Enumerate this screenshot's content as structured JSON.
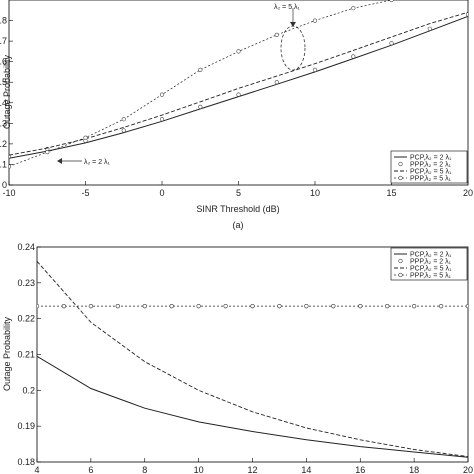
{
  "caption_a": "(a)",
  "chart_data": [
    {
      "type": "line",
      "panel": "a",
      "xlabel": "SINR Threshold (dB)",
      "ylabel": "Outage Probability",
      "xlim": [
        -10,
        20
      ],
      "ylim": [
        0,
        0.9
      ],
      "xticks": [
        "-10",
        "-5",
        "0",
        "5",
        "10",
        "15",
        "20"
      ],
      "yticks": [
        "0",
        "0.1",
        "0.2",
        "0.3",
        "0.4",
        "0.5",
        "0.6",
        "0.7",
        "0.8"
      ],
      "grid": false,
      "legend_position": "bottom-right",
      "series": [
        {
          "name": "PCP,λ₂ = 2 λ₁",
          "style": "solid",
          "x": [
            -10,
            -7.5,
            -5,
            -2.5,
            0,
            2.5,
            5,
            7.5,
            10,
            12.5,
            15,
            17.5,
            20
          ],
          "y": [
            0.13,
            0.165,
            0.205,
            0.255,
            0.31,
            0.37,
            0.43,
            0.49,
            0.55,
            0.615,
            0.68,
            0.75,
            0.82
          ]
        },
        {
          "name": "PPP,λ₂ = 2 λ₁",
          "style": "circle",
          "x": [
            -10,
            -7.5,
            -5,
            -2.5,
            0,
            2.5,
            5,
            7.5,
            10,
            12.5,
            15,
            17.5,
            20
          ],
          "y": [
            0.14,
            0.175,
            0.215,
            0.265,
            0.32,
            0.38,
            0.44,
            0.5,
            0.56,
            0.625,
            0.69,
            0.76,
            0.83
          ]
        },
        {
          "name": "PCP,λ₂ = 5 λ₁",
          "style": "dashed",
          "x": [
            -10,
            -7.5,
            -5,
            -2.5,
            0,
            2.5,
            5,
            7.5,
            10,
            12.5,
            15,
            17.5,
            20
          ],
          "y": [
            0.145,
            0.18,
            0.225,
            0.28,
            0.34,
            0.405,
            0.47,
            0.53,
            0.59,
            0.655,
            0.72,
            0.785,
            0.84
          ]
        },
        {
          "name": "PPP,λ₂ = 5 λ₁",
          "style": "dash-circle",
          "x": [
            -10,
            -7.5,
            -5,
            -2.5,
            0,
            2.5,
            5,
            7.5,
            10,
            12.5,
            15
          ],
          "y": [
            0.09,
            0.16,
            0.23,
            0.32,
            0.44,
            0.56,
            0.65,
            0.73,
            0.8,
            0.86,
            0.9
          ]
        }
      ],
      "annotations": [
        {
          "text": "λ₂ = 5 λ₁",
          "x": 7.5,
          "y": 0.86
        },
        {
          "text": "λ₂ = 2 λ₁",
          "x": -4,
          "y": 0.135
        }
      ]
    },
    {
      "type": "line",
      "panel": "b",
      "xlabel": "",
      "ylabel": "Outage Probability",
      "xlim": [
        4,
        20
      ],
      "ylim": [
        0.18,
        0.24
      ],
      "xticks": [
        "4",
        "6",
        "8",
        "10",
        "12",
        "14",
        "16",
        "18",
        "20"
      ],
      "yticks": [
        "0.18",
        "0.19",
        "0.2",
        "0.21",
        "0.22",
        "0.23",
        "0.24"
      ],
      "grid": false,
      "legend_position": "top-right",
      "series": [
        {
          "name": "PCP,λ₂ = 2 λ₁",
          "style": "solid",
          "x": [
            4,
            6,
            8,
            10,
            12,
            14,
            16,
            18,
            20
          ],
          "y": [
            0.2095,
            0.2005,
            0.195,
            0.1912,
            0.1885,
            0.1862,
            0.1843,
            0.1828,
            0.1813
          ]
        },
        {
          "name": "PPP,λ₂ = 2 λ₁",
          "style": "circle",
          "x": [
            4,
            5,
            6,
            7,
            8,
            9,
            10,
            11,
            12,
            13,
            14,
            15,
            16,
            17,
            18,
            19,
            20
          ],
          "y": [
            0.2235,
            0.2235,
            0.2235,
            0.2235,
            0.2235,
            0.2235,
            0.2235,
            0.2235,
            0.2235,
            0.2235,
            0.2235,
            0.2235,
            0.2235,
            0.2235,
            0.2235,
            0.2235,
            0.2235
          ]
        },
        {
          "name": "PCP,λ₂ = 5 λ₁",
          "style": "dashed",
          "x": [
            4,
            6,
            8,
            10,
            12,
            14,
            16,
            18,
            20
          ],
          "y": [
            0.236,
            0.219,
            0.208,
            0.2,
            0.194,
            0.1895,
            0.1862,
            0.1835,
            0.1815
          ]
        },
        {
          "name": "PPP,λ₂ = 5 λ₁",
          "style": "dash-circle",
          "x": [
            4,
            5,
            6,
            7,
            8,
            9,
            10,
            11,
            12,
            13,
            14,
            15,
            16,
            17,
            18,
            19,
            20
          ],
          "y": [
            0.2235,
            0.2235,
            0.2235,
            0.2235,
            0.2235,
            0.2235,
            0.2235,
            0.2235,
            0.2235,
            0.2235,
            0.2235,
            0.2235,
            0.2235,
            0.2235,
            0.2235,
            0.2235,
            0.2235
          ]
        }
      ]
    }
  ]
}
